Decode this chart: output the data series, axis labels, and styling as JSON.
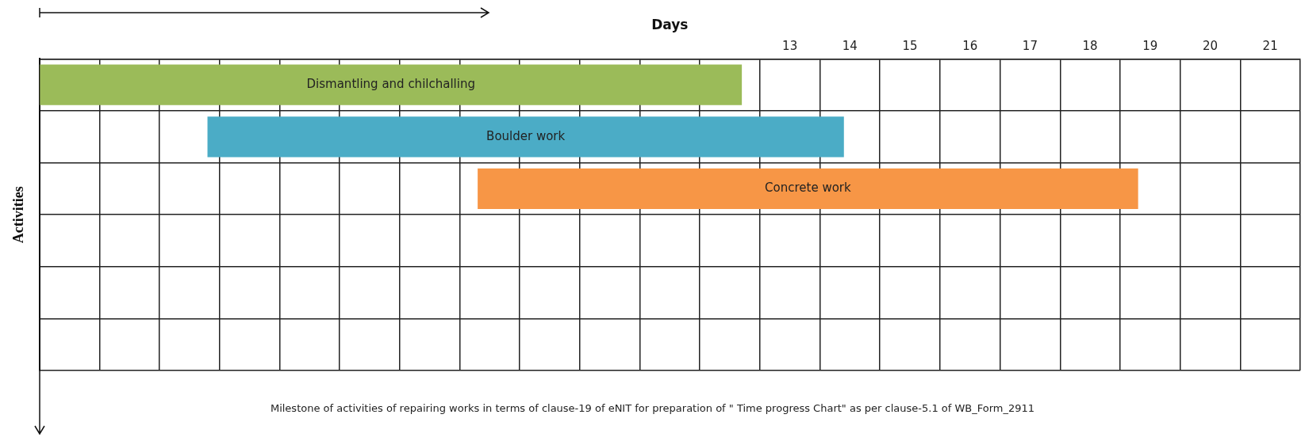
{
  "chart_data": {
    "type": "bar",
    "orientation": "horizontal",
    "xlabel": "Days",
    "ylabel": "Activities",
    "categories": [
      null,
      null,
      null,
      null,
      null,
      null
    ],
    "values": [
      11.7,
      10.6,
      11.0,
      null,
      null,
      null
    ],
    "base": [
      0,
      2.8,
      7.3,
      null,
      null,
      null
    ],
    "colors": [
      "#9bbb59",
      "#4bacc6",
      "#f79646",
      null,
      null,
      null
    ],
    "value_labels": [
      "Dismantling and chilchalling",
      "Boulder work",
      "Concrete work",
      null,
      null,
      null
    ],
    "xlim": [
      0,
      21
    ],
    "xticks": [
      {
        "value": 0,
        "label": null
      },
      {
        "value": 1,
        "label": null
      },
      {
        "value": 2,
        "label": null
      },
      {
        "value": 3,
        "label": null
      },
      {
        "value": 4,
        "label": null
      },
      {
        "value": 5,
        "label": null
      },
      {
        "value": 6,
        "label": null
      },
      {
        "value": 7,
        "label": null
      },
      {
        "value": 8,
        "label": null
      },
      {
        "value": 9,
        "label": null
      },
      {
        "value": 10,
        "label": null
      },
      {
        "value": 11,
        "label": null
      },
      {
        "value": 12,
        "label": null
      },
      {
        "value": 12.5,
        "label": "13"
      },
      {
        "value": 13,
        "label": null
      },
      {
        "value": 13.5,
        "label": "14"
      },
      {
        "value": 14,
        "label": null
      },
      {
        "value": 14.5,
        "label": "15"
      },
      {
        "value": 15,
        "label": null
      },
      {
        "value": 15.5,
        "label": "16"
      },
      {
        "value": 16,
        "label": null
      },
      {
        "value": 16.5,
        "label": "17"
      },
      {
        "value": 17,
        "label": null
      },
      {
        "value": 17.5,
        "label": "18"
      },
      {
        "value": 18,
        "label": null
      },
      {
        "value": 18.5,
        "label": "19"
      },
      {
        "value": 19,
        "label": null
      },
      {
        "value": 19.5,
        "label": "20"
      },
      {
        "value": 20,
        "label": null
      },
      {
        "value": 20.5,
        "label": "21"
      },
      {
        "value": 21,
        "label": null
      }
    ],
    "grid": true,
    "tick_labels": "x",
    "legend": false,
    "annotations": [
      "Milestone of activities of repairing works in terms of clause-19 of eNIT for preparation of \" Time progress Chart\" as per clause-5.1 of WB_Form_2911"
    ]
  }
}
